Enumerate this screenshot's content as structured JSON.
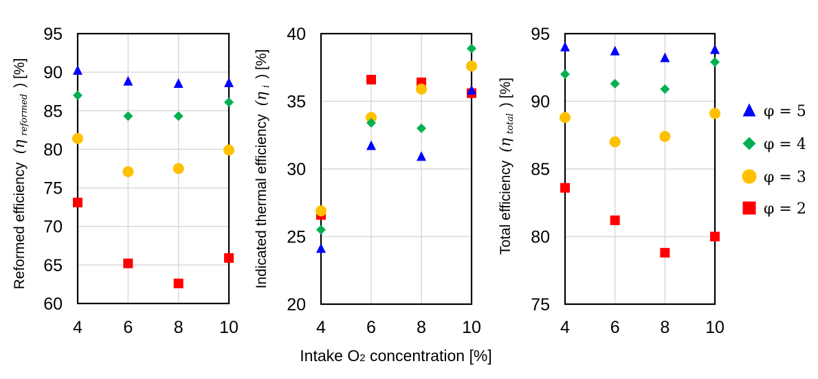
{
  "chart_data": [
    {
      "type": "scatter",
      "ylabel_text": "Reformed  efficiency",
      "ylabel_math": "(η",
      "ylabel_sub": "reformed",
      "ylabel_tail": ") [%]",
      "ylim": [
        60,
        95
      ],
      "yticks": [
        60,
        65,
        70,
        75,
        80,
        85,
        90,
        95
      ],
      "ytick_labels": [
        "60",
        "65",
        "70",
        "75",
        "80",
        "85",
        "90",
        "95"
      ],
      "x": [
        4,
        6,
        8,
        10
      ],
      "xtick_labels": [
        "4",
        "6",
        "8",
        "10"
      ],
      "xlim": [
        4,
        10
      ],
      "grid": true,
      "series": [
        {
          "name": "φ = 5",
          "values": [
            90.2,
            88.8,
            88.5,
            88.6
          ]
        },
        {
          "name": "φ = 4",
          "values": [
            87.0,
            84.3,
            84.3,
            86.1
          ]
        },
        {
          "name": "φ = 3",
          "values": [
            81.4,
            77.1,
            77.5,
            79.9
          ]
        },
        {
          "name": "φ = 2",
          "values": [
            73.1,
            65.2,
            62.6,
            65.9
          ]
        }
      ]
    },
    {
      "type": "scatter",
      "ylabel_text": "Indicated  thermal  efficiency",
      "ylabel_math": "(η",
      "ylabel_sub": "i",
      "ylabel_tail": ") [%]",
      "ylim": [
        20,
        40
      ],
      "yticks": [
        20,
        25,
        30,
        35,
        40
      ],
      "ytick_labels": [
        "20",
        "25",
        "30",
        "35",
        "40"
      ],
      "x": [
        4,
        6,
        8,
        10
      ],
      "xtick_labels": [
        "4",
        "6",
        "8",
        "10"
      ],
      "xlim": [
        4,
        10
      ],
      "grid": true,
      "series": [
        {
          "name": "φ = 5",
          "values": [
            24.1,
            31.7,
            30.9,
            35.8
          ]
        },
        {
          "name": "φ = 4",
          "values": [
            25.5,
            33.4,
            33.0,
            38.9
          ]
        },
        {
          "name": "φ = 3",
          "values": [
            26.9,
            33.8,
            35.9,
            37.6
          ]
        },
        {
          "name": "φ = 2",
          "values": [
            26.6,
            36.6,
            36.4,
            35.6
          ]
        }
      ]
    },
    {
      "type": "scatter",
      "ylabel_text": "Total efficiency",
      "ylabel_math": "(η",
      "ylabel_sub": "total",
      "ylabel_tail": ") [%]",
      "ylim": [
        75,
        95
      ],
      "yticks": [
        75,
        80,
        85,
        90,
        95
      ],
      "ytick_labels": [
        "75",
        "80",
        "85",
        "90",
        "95"
      ],
      "x": [
        4,
        6,
        8,
        10
      ],
      "xtick_labels": [
        "4",
        "6",
        "8",
        "10"
      ],
      "xlim": [
        4,
        10
      ],
      "grid": true,
      "series": [
        {
          "name": "φ = 5",
          "values": [
            94.0,
            93.7,
            93.2,
            93.8
          ]
        },
        {
          "name": "φ = 4",
          "values": [
            92.0,
            91.3,
            90.9,
            92.9
          ]
        },
        {
          "name": "φ = 3",
          "values": [
            88.8,
            87.0,
            87.4,
            89.1
          ]
        },
        {
          "name": "φ = 2",
          "values": [
            83.6,
            81.2,
            78.8,
            80.0
          ]
        }
      ]
    }
  ],
  "shared_xlabel": {
    "prefix": "Intake O",
    "subscript": "2",
    "suffix": " concentration [%]"
  },
  "legend": {
    "placement": "right",
    "items": [
      {
        "label": "φ = 5",
        "marker": "triangle",
        "color": "#0000FF"
      },
      {
        "label": "φ = 4",
        "marker": "diamond",
        "color": "#00B050"
      },
      {
        "label": "φ = 3",
        "marker": "circle",
        "color": "#FFC000"
      },
      {
        "label": "φ = 2",
        "marker": "square",
        "color": "#FF0000"
      }
    ]
  }
}
